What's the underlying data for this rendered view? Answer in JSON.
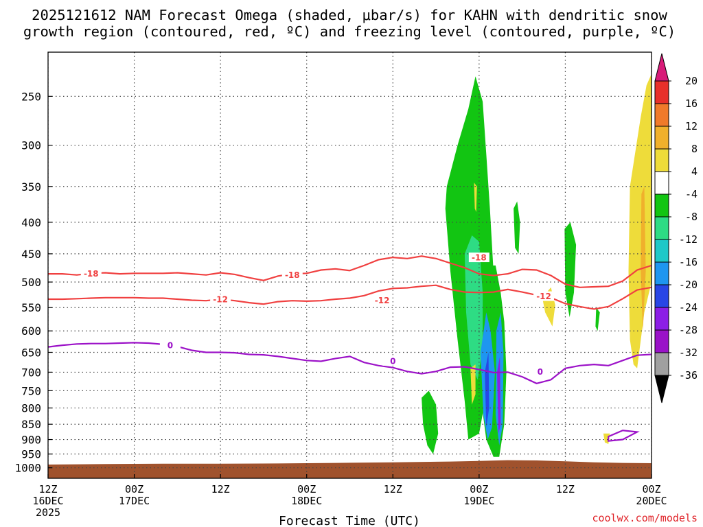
{
  "title": {
    "line1": "2025121612 NAM Forecast Omega (shaded, μbar/s) for KAHN with dendritic snow",
    "line2": "growth region (contoured, red, ºC) and freezing level (contoured, purple, ºC)"
  },
  "credit": "coolwx.com/models",
  "chart_data": {
    "type": "heatmap",
    "xlabel": "Forecast Time (UTC)",
    "ylabel": "",
    "y_axis": {
      "scale": "log",
      "inverted": true,
      "ylim": [
        1040,
        212
      ],
      "ticks": [
        250,
        300,
        350,
        400,
        450,
        500,
        550,
        600,
        650,
        700,
        750,
        800,
        850,
        900,
        950,
        1000
      ]
    },
    "x_axis": {
      "ticks_hours": [
        0,
        12,
        24,
        36,
        48,
        60,
        72,
        84,
        96
      ],
      "tick_labels": [
        [
          "12Z",
          "16DEC",
          "2025"
        ],
        [
          "00Z",
          "17DEC"
        ],
        [
          "12Z"
        ],
        [
          "00Z",
          "18DEC"
        ],
        [
          "12Z"
        ],
        [
          "00Z",
          "19DEC"
        ],
        [
          "12Z"
        ],
        [
          "00Z",
          "20DEC"
        ]
      ],
      "tick_label_hours": [
        0,
        12,
        24,
        36,
        48,
        60,
        72,
        84
      ],
      "xlim_hours": [
        0,
        84
      ]
    },
    "grid": true,
    "colorbar": {
      "labels": [
        "20",
        "16",
        "12",
        "8",
        "4",
        "-4",
        "-8",
        "-12",
        "-16",
        "-20",
        "-24",
        "-28",
        "-32",
        "-36"
      ],
      "levels": [
        {
          "color": "#d81b78"
        },
        {
          "color": "#e8302a"
        },
        {
          "color": "#f07a2a"
        },
        {
          "color": "#f0b02c"
        },
        {
          "color": "#eedc3a"
        },
        {
          "color": "#ffffff"
        },
        {
          "color": "#12c512"
        },
        {
          "color": "#2edc84"
        },
        {
          "color": "#1ec8c8"
        },
        {
          "color": "#1e96f0"
        },
        {
          "color": "#2846e6"
        },
        {
          "color": "#8c1ee6"
        },
        {
          "color": "#9a12c8"
        },
        {
          "color": "#a0a0a0"
        },
        {
          "color": "#000000"
        }
      ]
    },
    "contour_series": [
      {
        "name": "-18",
        "color": "#f04040",
        "x": [
          0,
          2,
          4,
          6,
          8,
          10,
          12,
          14,
          16,
          18,
          20,
          22,
          24,
          26,
          28,
          30,
          32,
          34,
          36,
          38,
          40,
          42,
          44,
          46,
          48,
          50,
          52,
          54,
          56,
          58,
          60,
          62,
          64,
          66,
          68,
          70,
          72,
          74,
          76,
          78,
          80,
          82,
          84
        ],
        "y": [
          485,
          485,
          487,
          484,
          483,
          485,
          484,
          484,
          484,
          483,
          485,
          487,
          483,
          486,
          492,
          497,
          489,
          485,
          484,
          478,
          476,
          479,
          470,
          460,
          456,
          458,
          454,
          458,
          466,
          474,
          485,
          488,
          485,
          477,
          478,
          488,
          504,
          510,
          509,
          508,
          498,
          478,
          470
        ],
        "labels": [
          {
            "text": "-18",
            "x": 6,
            "y": 484
          },
          {
            "text": "-18",
            "x": 34,
            "y": 487
          },
          {
            "text": "-18",
            "x": 60,
            "y": 456
          }
        ]
      },
      {
        "name": "-12",
        "color": "#f04040",
        "x": [
          0,
          2,
          4,
          6,
          8,
          10,
          12,
          14,
          16,
          18,
          20,
          22,
          24,
          26,
          28,
          30,
          32,
          34,
          36,
          38,
          40,
          42,
          44,
          46,
          48,
          50,
          52,
          54,
          56,
          58,
          60,
          62,
          64,
          66,
          68,
          70,
          72,
          74,
          76,
          78,
          80,
          82,
          84
        ],
        "y": [
          533,
          533,
          532,
          531,
          530,
          530,
          530,
          531,
          531,
          533,
          535,
          536,
          533,
          536,
          540,
          543,
          538,
          536,
          537,
          536,
          533,
          531,
          526,
          517,
          512,
          511,
          508,
          506,
          514,
          519,
          520,
          519,
          514,
          519,
          525,
          530,
          542,
          548,
          553,
          548,
          532,
          515,
          510
        ],
        "labels": [
          {
            "text": "-12",
            "x": 24,
            "y": 533
          },
          {
            "text": "-12",
            "x": 46.5,
            "y": 535
          },
          {
            "text": "-12",
            "x": 69,
            "y": 527
          }
        ]
      },
      {
        "name": "0",
        "color": "#9c12c8",
        "x": [
          0,
          2,
          4,
          6,
          8,
          10,
          12,
          14,
          16,
          18,
          20,
          22,
          24,
          26,
          28,
          30,
          32,
          34,
          36,
          38,
          40,
          42,
          44,
          46,
          48,
          50,
          52,
          54,
          56,
          58,
          60,
          62,
          64,
          66,
          68,
          70,
          72,
          74,
          76,
          78,
          80,
          82,
          84
        ],
        "y": [
          637,
          633,
          630,
          629,
          629,
          628,
          627,
          628,
          631,
          636,
          645,
          650,
          650,
          651,
          655,
          656,
          660,
          665,
          670,
          672,
          665,
          660,
          675,
          683,
          688,
          698,
          704,
          698,
          687,
          686,
          693,
          701,
          700,
          712,
          730,
          720,
          690,
          683,
          680,
          683,
          670,
          657,
          655
        ],
        "labels": [
          {
            "text": "0",
            "x": 17,
            "y": 633
          },
          {
            "text": "0",
            "x": 48,
            "y": 671
          },
          {
            "text": "0",
            "x": 68.5,
            "y": 698
          }
        ]
      }
    ],
    "omega_regions": [
      {
        "level": "-8",
        "color": "#12c512",
        "x": [
          55.5,
          57,
          58.5,
          59.5,
          60.5,
          61,
          61.5,
          62,
          61.5,
          61,
          60,
          58.5,
          58,
          57,
          56,
          55.3,
          55.5
        ],
        "y": [
          350,
          300,
          262,
          232,
          255,
          310,
          380,
          480,
          600,
          760,
          880,
          900,
          780,
          620,
          480,
          380,
          350
        ]
      },
      {
        "level": "-8",
        "color": "#12c512",
        "x": [
          59.5,
          60.5,
          61.5,
          62.3,
          63,
          63.5,
          63.8,
          63.5,
          62.8,
          62,
          61,
          60.3,
          59.7,
          59.5
        ],
        "y": [
          620,
          520,
          470,
          470,
          520,
          580,
          700,
          850,
          960,
          960,
          900,
          780,
          700,
          620
        ]
      },
      {
        "level": "-8",
        "color": "#12c512",
        "x": [
          52,
          53,
          54,
          54.3,
          53.6,
          52.8,
          52.2,
          52
        ],
        "y": [
          770,
          750,
          790,
          880,
          950,
          920,
          850,
          770
        ]
      },
      {
        "level": "-8",
        "color": "#12c512",
        "x": [
          64.8,
          65.3,
          65.7,
          65.5,
          65,
          64.8
        ],
        "y": [
          380,
          370,
          400,
          450,
          440,
          380
        ]
      },
      {
        "level": "-8",
        "color": "#12c512",
        "x": [
          71.9,
          72.7,
          73.5,
          73.2,
          72.6,
          72,
          71.9
        ],
        "y": [
          410,
          400,
          435,
          520,
          570,
          520,
          410
        ]
      },
      {
        "level": "-8",
        "color": "#12c512",
        "x": [
          76.3,
          76.8,
          76.5,
          76.2,
          76.3
        ],
        "y": [
          550,
          560,
          600,
          590,
          550
        ]
      },
      {
        "level": "-12",
        "color": "#2edc84",
        "x": [
          58,
          59,
          60,
          60.5,
          60.5,
          59.8,
          58.8,
          58.2,
          58
        ],
        "y": [
          450,
          420,
          430,
          520,
          640,
          720,
          680,
          560,
          450
        ]
      },
      {
        "level": "-16",
        "color": "#1e96f0",
        "x": [
          60.2,
          61,
          61.6,
          62.2,
          61.8,
          61.2,
          60.6,
          60.2
        ],
        "y": [
          650,
          560,
          600,
          700,
          860,
          900,
          820,
          650
        ]
      },
      {
        "level": "-16",
        "color": "#1e96f0",
        "x": [
          62.4,
          63,
          63.4,
          63.3,
          62.8,
          62.3,
          62.4
        ],
        "y": [
          600,
          560,
          650,
          850,
          920,
          820,
          600
        ]
      },
      {
        "level": "-24",
        "color": "#2846e6",
        "x": [
          60.8,
          61.3,
          61.4,
          61,
          60.8
        ],
        "y": [
          700,
          650,
          800,
          860,
          700
        ]
      },
      {
        "level": "-28",
        "color": "#8c1ee6",
        "x": [
          62.5,
          62.9,
          63,
          62.7,
          62.5
        ],
        "y": [
          700,
          660,
          850,
          880,
          700
        ]
      },
      {
        "level": "4",
        "color": "#eedc3a",
        "x": [
          81,
          82.5,
          83.3,
          84,
          84,
          83,
          82,
          81.5,
          81,
          80.8,
          81
        ],
        "y": [
          350,
          270,
          240,
          230,
          500,
          560,
          690,
          680,
          620,
          480,
          350
        ]
      },
      {
        "level": "4",
        "color": "#eedc3a",
        "x": [
          58.8,
          59.5,
          59.5,
          59,
          58.8
        ],
        "y": [
          690,
          680,
          760,
          790,
          690
        ]
      },
      {
        "level": "4",
        "color": "#eedc3a",
        "x": [
          68.8,
          70,
          70.6,
          70.2,
          69.2,
          68.8
        ],
        "y": [
          530,
          510,
          545,
          590,
          560,
          530
        ]
      },
      {
        "level": "4",
        "color": "#eedc3a",
        "x": [
          77.3,
          78.2,
          78,
          77.5,
          77.3
        ],
        "y": [
          880,
          880,
          915,
          910,
          880
        ]
      },
      {
        "level": "4",
        "color": "#eedc3a",
        "x": [
          59.3,
          59.7,
          59.6,
          59.4,
          59.3
        ],
        "y": [
          345,
          350,
          385,
          380,
          345
        ]
      },
      {
        "level": "8",
        "color": "#f0b02c",
        "x": [
          82.6,
          83,
          83.2,
          82.8,
          82.5,
          82.6
        ],
        "y": [
          360,
          350,
          480,
          600,
          480,
          360
        ]
      }
    ],
    "freezing_closed_contour": {
      "color": "#9c12c8",
      "x": [
        78,
        80,
        82,
        80,
        78,
        78
      ],
      "y": [
        890,
        870,
        875,
        900,
        905,
        890
      ]
    },
    "terrain": {
      "color": "#a0522d",
      "x": [
        0,
        8,
        16,
        24,
        32,
        40,
        48,
        56,
        60,
        64,
        68,
        72,
        76,
        80,
        84
      ],
      "y": [
        988,
        986,
        985,
        985,
        984,
        982,
        980,
        977,
        975,
        972,
        973,
        976,
        980,
        982,
        983
      ]
    }
  }
}
